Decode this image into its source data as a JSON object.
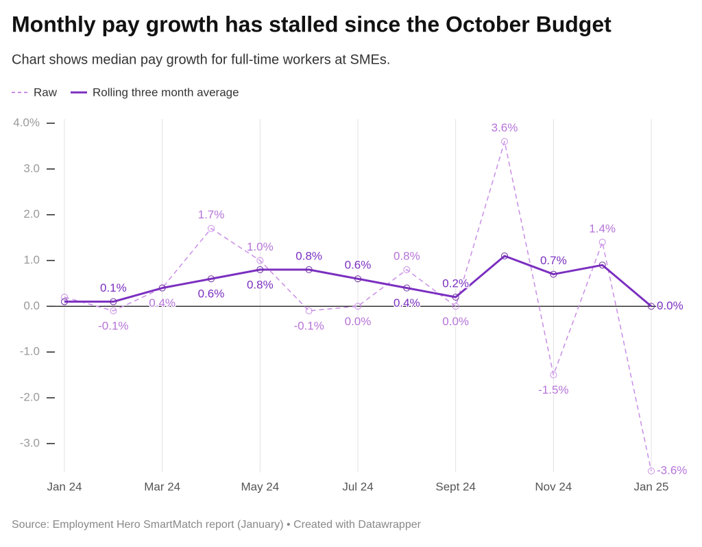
{
  "chart_data": {
    "type": "line",
    "title": "Monthly pay growth has stalled since the October Budget",
    "subtitle": "Chart shows median pay growth for full-time workers at SMEs.",
    "source": "Source: Employment Hero SmartMatch report (January) • Created with Datawrapper",
    "categories": [
      "Jan 24",
      null,
      "Mar 24",
      null,
      "May 24",
      null,
      "Jul 24",
      null,
      "Sept 24",
      null,
      "Nov 24",
      null,
      "Jan 25"
    ],
    "series": [
      {
        "name": "Raw",
        "color": "#c98de6",
        "dashed": true,
        "values": [
          0.2,
          -0.1,
          0.4,
          1.7,
          1.0,
          -0.1,
          0.0,
          0.8,
          0.0,
          3.6,
          -1.5,
          1.4,
          -3.6
        ],
        "value_labels": [
          null,
          "-0.1%",
          "0.4%",
          "1.7%",
          "1.0%",
          "-0.1%",
          "0.0%",
          "0.8%",
          "0.0%",
          "3.6%",
          "-1.5%",
          "1.4%",
          "-3.6%"
        ]
      },
      {
        "name": "Rolling three month average",
        "color": "#7b2fc0",
        "dashed": false,
        "values": [
          0.1,
          0.1,
          0.4,
          0.6,
          0.8,
          0.8,
          0.6,
          0.4,
          0.2,
          1.1,
          0.7,
          0.9,
          0.0
        ],
        "value_labels": [
          null,
          "0.1%",
          null,
          "0.6%",
          "0.8%",
          "0.8%",
          "0.6%",
          "0.4%",
          "0.2%",
          null,
          "0.7%",
          null,
          "0.0%"
        ]
      }
    ],
    "ylim": [
      -3.6,
      4.0
    ],
    "yticks": [
      {
        "value": 4,
        "label": "4.0%"
      },
      {
        "value": 3,
        "label": "3.0"
      },
      {
        "value": 2,
        "label": "2.0"
      },
      {
        "value": 1,
        "label": "1.0"
      },
      {
        "value": 0,
        "label": "0.0"
      },
      {
        "value": -1,
        "label": "-1.0"
      },
      {
        "value": -2,
        "label": "-2.0"
      },
      {
        "value": -3,
        "label": "-3.0"
      }
    ],
    "grid": true
  }
}
